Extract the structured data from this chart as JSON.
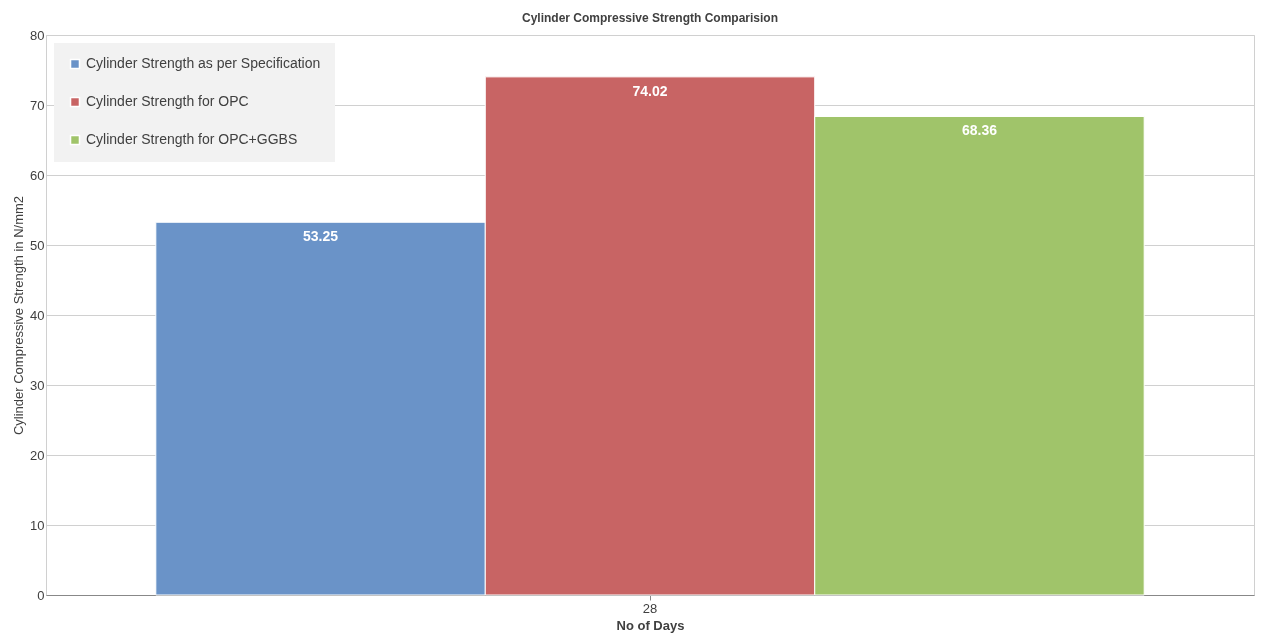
{
  "chart_data": {
    "type": "bar",
    "title": "Cylinder Compressive  Strength Comparision",
    "xlabel": "No of Days",
    "ylabel": "Cylinder Compressive  Strength in N/mm2",
    "categories": [
      "28"
    ],
    "series": [
      {
        "name": "Cylinder Strength as per Specification",
        "color": "#6a93c8",
        "values": [
          53.25
        ]
      },
      {
        "name": "Cylinder Strength for OPC",
        "color": "#c86464",
        "values": [
          74.02
        ]
      },
      {
        "name": "Cylinder Strength for OPC+GGBS",
        "color": "#a0c46a",
        "values": [
          68.36
        ]
      }
    ],
    "ylim": [
      0,
      80
    ],
    "yticks": [
      0,
      10,
      20,
      30,
      40,
      50,
      60,
      70,
      80
    ],
    "grid": "y",
    "legend": "top left",
    "data_labels": true
  }
}
